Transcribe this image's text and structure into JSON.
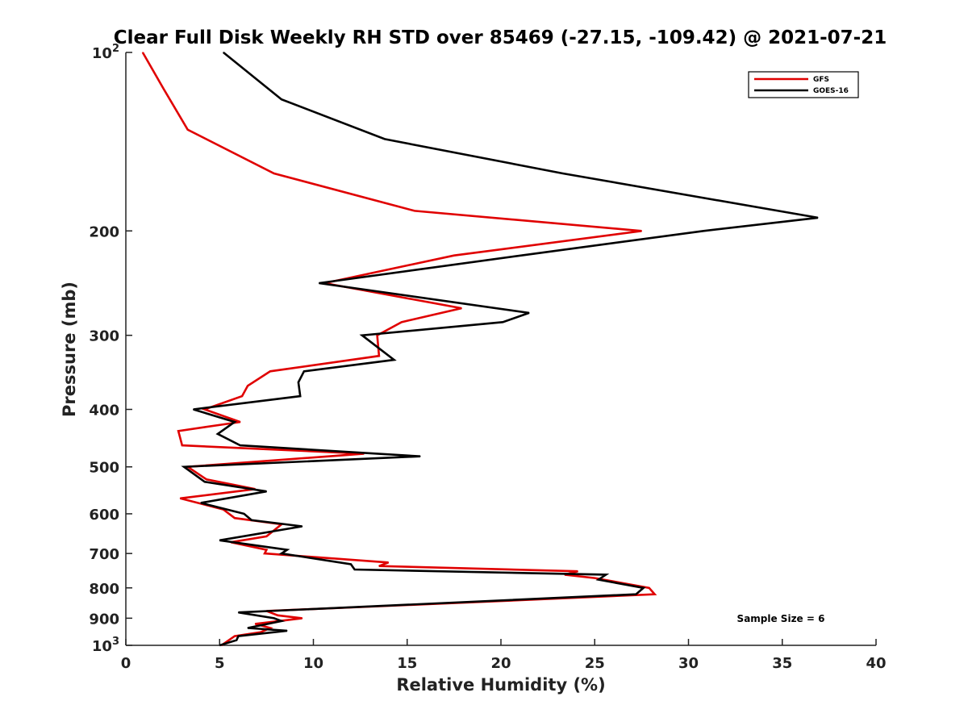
{
  "chart_data": {
    "type": "line",
    "title": "Clear Full Disk Weekly RH STD over 85469 (-27.15, -109.42) @ 2021-07-21",
    "xlabel": "Relative Humidity (%)",
    "ylabel": "Pressure (mb)",
    "xlim": [
      0,
      40
    ],
    "ylim": [
      100,
      1000
    ],
    "y_scale": "log",
    "y_reversed": true,
    "grid": false,
    "x_ticks": [
      0,
      5,
      10,
      15,
      20,
      25,
      30,
      35,
      40
    ],
    "x_tick_labels": [
      "0",
      "5",
      "10",
      "15",
      "20",
      "25",
      "30",
      "35",
      "40"
    ],
    "y_ticks": [
      100,
      200,
      300,
      400,
      500,
      600,
      700,
      800,
      900,
      1000
    ],
    "y_tick_labels": [
      {
        "base": "10",
        "exp": "2"
      },
      {
        "base": "200",
        "exp": ""
      },
      {
        "base": "300",
        "exp": ""
      },
      {
        "base": "400",
        "exp": ""
      },
      {
        "base": "500",
        "exp": ""
      },
      {
        "base": "600",
        "exp": ""
      },
      {
        "base": "700",
        "exp": ""
      },
      {
        "base": "800",
        "exp": ""
      },
      {
        "base": "900",
        "exp": ""
      },
      {
        "base": "10",
        "exp": "3"
      }
    ],
    "legend_position": "top-right",
    "annotation": "Sample Size = 6",
    "series": [
      {
        "name": "GFS",
        "color": "#e00000",
        "points": [
          [
            0.9,
            100
          ],
          [
            2.0,
            115
          ],
          [
            3.3,
            135
          ],
          [
            7.9,
            160
          ],
          [
            15.4,
            185
          ],
          [
            27.5,
            200
          ],
          [
            17.5,
            220
          ],
          [
            10.6,
            245
          ],
          [
            17.9,
            270
          ],
          [
            14.7,
            285
          ],
          [
            13.4,
            300
          ],
          [
            13.5,
            325
          ],
          [
            7.7,
            345
          ],
          [
            6.5,
            365
          ],
          [
            6.2,
            380
          ],
          [
            4.2,
            400
          ],
          [
            6.1,
            420
          ],
          [
            2.8,
            435
          ],
          [
            3.0,
            460
          ],
          [
            12.7,
            475
          ],
          [
            3.3,
            500
          ],
          [
            4.3,
            525
          ],
          [
            6.9,
            545
          ],
          [
            2.9,
            565
          ],
          [
            5.2,
            590
          ],
          [
            5.8,
            610
          ],
          [
            8.3,
            625
          ],
          [
            7.5,
            655
          ],
          [
            5.6,
            670
          ],
          [
            7.5,
            690
          ],
          [
            7.4,
            700
          ],
          [
            14.0,
            725
          ],
          [
            13.5,
            735
          ],
          [
            24.1,
            750
          ],
          [
            23.4,
            760
          ],
          [
            25.0,
            770
          ],
          [
            27.9,
            800
          ],
          [
            28.2,
            820
          ],
          [
            17.0,
            850
          ],
          [
            7.5,
            875
          ],
          [
            8.1,
            890
          ],
          [
            9.4,
            900
          ],
          [
            6.9,
            920
          ],
          [
            7.7,
            935
          ],
          [
            7.2,
            950
          ],
          [
            5.8,
            965
          ],
          [
            5.1,
            1000
          ]
        ]
      },
      {
        "name": "GOES-16",
        "color": "#000000",
        "points": [
          [
            5.2,
            100
          ],
          [
            8.3,
            120
          ],
          [
            13.8,
            140
          ],
          [
            23.3,
            160
          ],
          [
            36.9,
            190
          ],
          [
            30.8,
            200
          ],
          [
            22.0,
            218
          ],
          [
            10.3,
            245
          ],
          [
            21.5,
            275
          ],
          [
            20.1,
            285
          ],
          [
            12.6,
            300
          ],
          [
            14.3,
            330
          ],
          [
            9.5,
            345
          ],
          [
            9.2,
            360
          ],
          [
            9.3,
            380
          ],
          [
            3.6,
            400
          ],
          [
            5.8,
            420
          ],
          [
            4.9,
            440
          ],
          [
            6.1,
            460
          ],
          [
            15.7,
            480
          ],
          [
            3.1,
            500
          ],
          [
            4.2,
            530
          ],
          [
            7.5,
            550
          ],
          [
            4.0,
            575
          ],
          [
            6.3,
            600
          ],
          [
            6.7,
            615
          ],
          [
            9.4,
            630
          ],
          [
            5.0,
            665
          ],
          [
            8.6,
            690
          ],
          [
            8.3,
            700
          ],
          [
            12.0,
            730
          ],
          [
            12.2,
            745
          ],
          [
            25.6,
            760
          ],
          [
            25.2,
            775
          ],
          [
            27.6,
            800
          ],
          [
            27.2,
            820
          ],
          [
            6.0,
            880
          ],
          [
            7.9,
            900
          ],
          [
            8.3,
            910
          ],
          [
            6.5,
            935
          ],
          [
            8.6,
            945
          ],
          [
            6.0,
            965
          ],
          [
            5.9,
            980
          ],
          [
            5.0,
            1000
          ]
        ]
      }
    ]
  }
}
